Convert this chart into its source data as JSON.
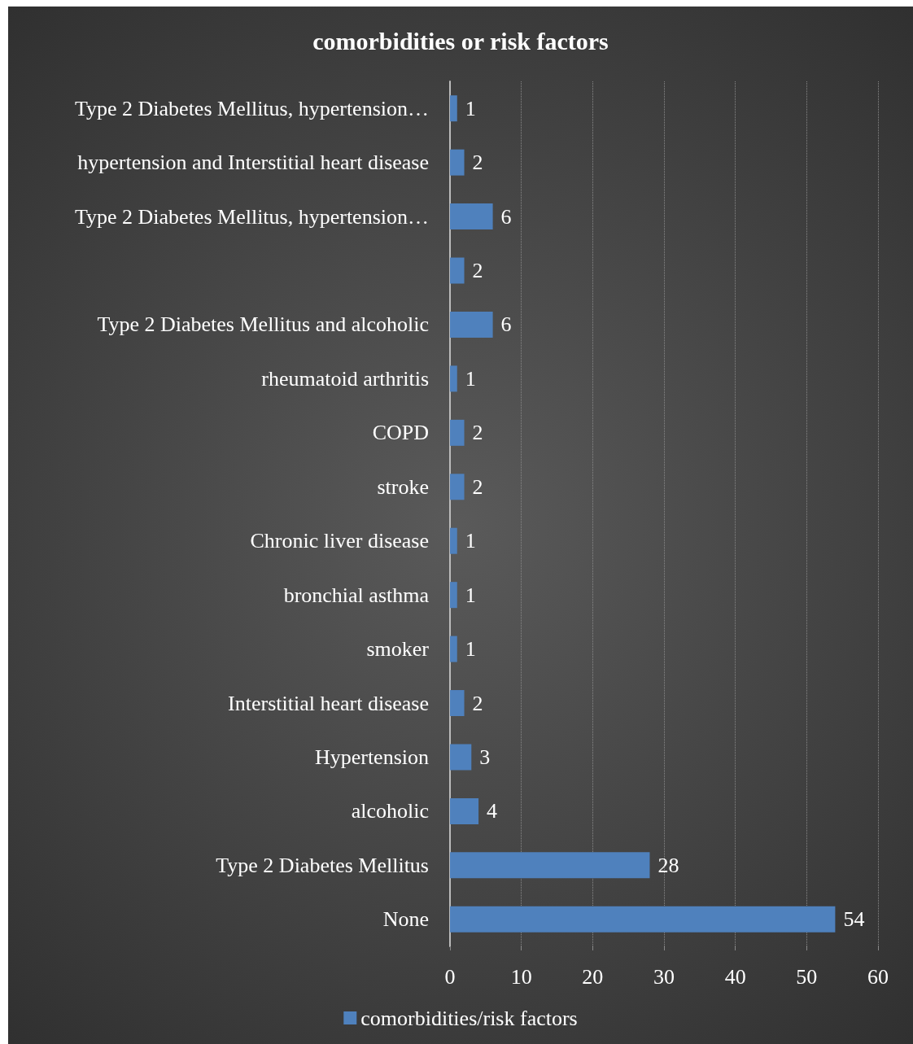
{
  "chart_data": {
    "type": "bar",
    "orientation": "horizontal",
    "title": "comorbidities or risk factors",
    "categories": [
      "Type 2 Diabetes Mellitus, hypertension…",
      "hypertension and Interstitial heart disease",
      "Type 2 Diabetes Mellitus, hypertension…",
      null,
      "Type 2 Diabetes Mellitus and alcoholic",
      "rheumatoid arthritis",
      "COPD",
      "stroke",
      "Chronic liver disease",
      "bronchial asthma",
      "smoker",
      "Interstitial heart disease",
      "Hypertension",
      "alcoholic",
      "Type 2 Diabetes Mellitus",
      "None"
    ],
    "series": [
      {
        "name": "comorbidities/risk factors",
        "color": "#4f81bd",
        "values": [
          1,
          2,
          6,
          2,
          6,
          1,
          2,
          2,
          1,
          1,
          1,
          2,
          3,
          4,
          28,
          54
        ]
      }
    ],
    "xlim": [
      0,
      60
    ],
    "xticks": [
      0,
      10,
      20,
      30,
      40,
      50,
      60
    ],
    "grid": "x",
    "legend": "bottom",
    "data_labels": true
  }
}
